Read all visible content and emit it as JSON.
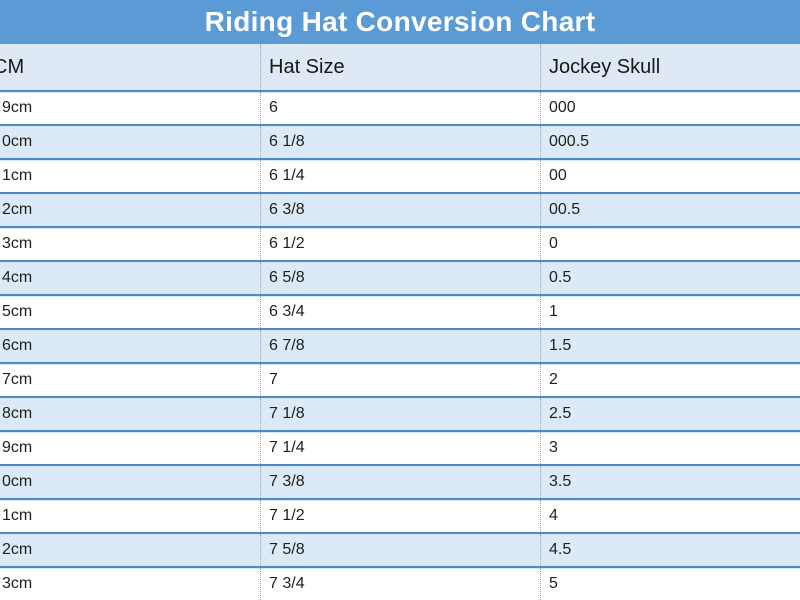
{
  "title_bar": {
    "label": "Riding Hat Conversion Chart"
  },
  "colors": {
    "title_bar_bg": "#5B9BD5",
    "title_text": "#FFFFFF",
    "header_row_bg": "#DEE9F5",
    "row_alt_bg": "#DCE9F6",
    "row_bg": "#FFFFFF",
    "row_border": "#4E8AC6",
    "column_separator": "#A3A3A3",
    "cell_text": "#1F1F1F"
  },
  "chart_data": {
    "type": "table",
    "title": "Riding Hat Conversion Chart",
    "columns": [
      "CM",
      "Hat Size",
      "Jockey Skull"
    ],
    "note_visible_cropping": "left column text is clipped by the image edge; strings below are exactly as rendered",
    "rows": [
      [
        "9cm",
        "6",
        "000"
      ],
      [
        "0cm",
        "6 1/8",
        "000.5"
      ],
      [
        "1cm",
        "6 1/4",
        "00"
      ],
      [
        "2cm",
        "6 3/8",
        "00.5"
      ],
      [
        "3cm",
        "6 1/2",
        "0"
      ],
      [
        "4cm",
        "6 5/8",
        "0.5"
      ],
      [
        "5cm",
        "6 3/4",
        "1"
      ],
      [
        "6cm",
        "6 7/8",
        "1.5"
      ],
      [
        "7cm",
        "7",
        "2"
      ],
      [
        "8cm",
        "7 1/8",
        "2.5"
      ],
      [
        "9cm",
        "7 1/4",
        "3"
      ],
      [
        "0cm",
        "7 3/8",
        "3.5"
      ],
      [
        "1cm",
        "7 1/2",
        "4"
      ],
      [
        "2cm",
        "7 5/8",
        "4.5"
      ],
      [
        "3cm",
        "7 3/4",
        "5"
      ]
    ]
  }
}
